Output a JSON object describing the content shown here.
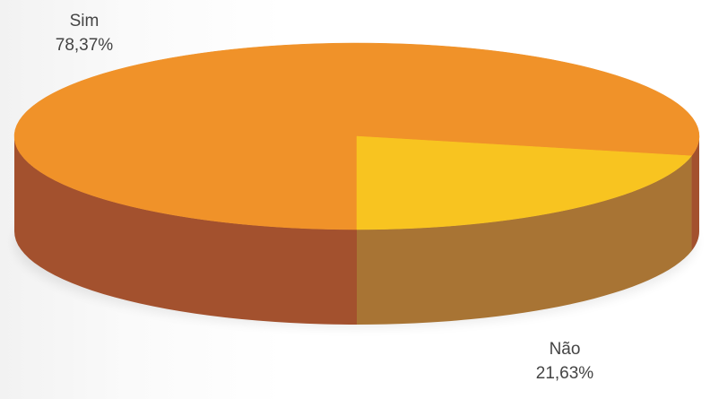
{
  "chart_data": {
    "type": "pie",
    "style": "3d",
    "title": "",
    "categories": [
      "Sim",
      "Não"
    ],
    "values": [
      78.37,
      21.63
    ],
    "value_labels": [
      "78,37%",
      "21,63%"
    ],
    "colors": {
      "Sim": {
        "top": "#f09229",
        "side": "#a3512e"
      },
      "Não": {
        "top": "#f8c420",
        "side": "#a87434"
      }
    },
    "legend": "none"
  }
}
